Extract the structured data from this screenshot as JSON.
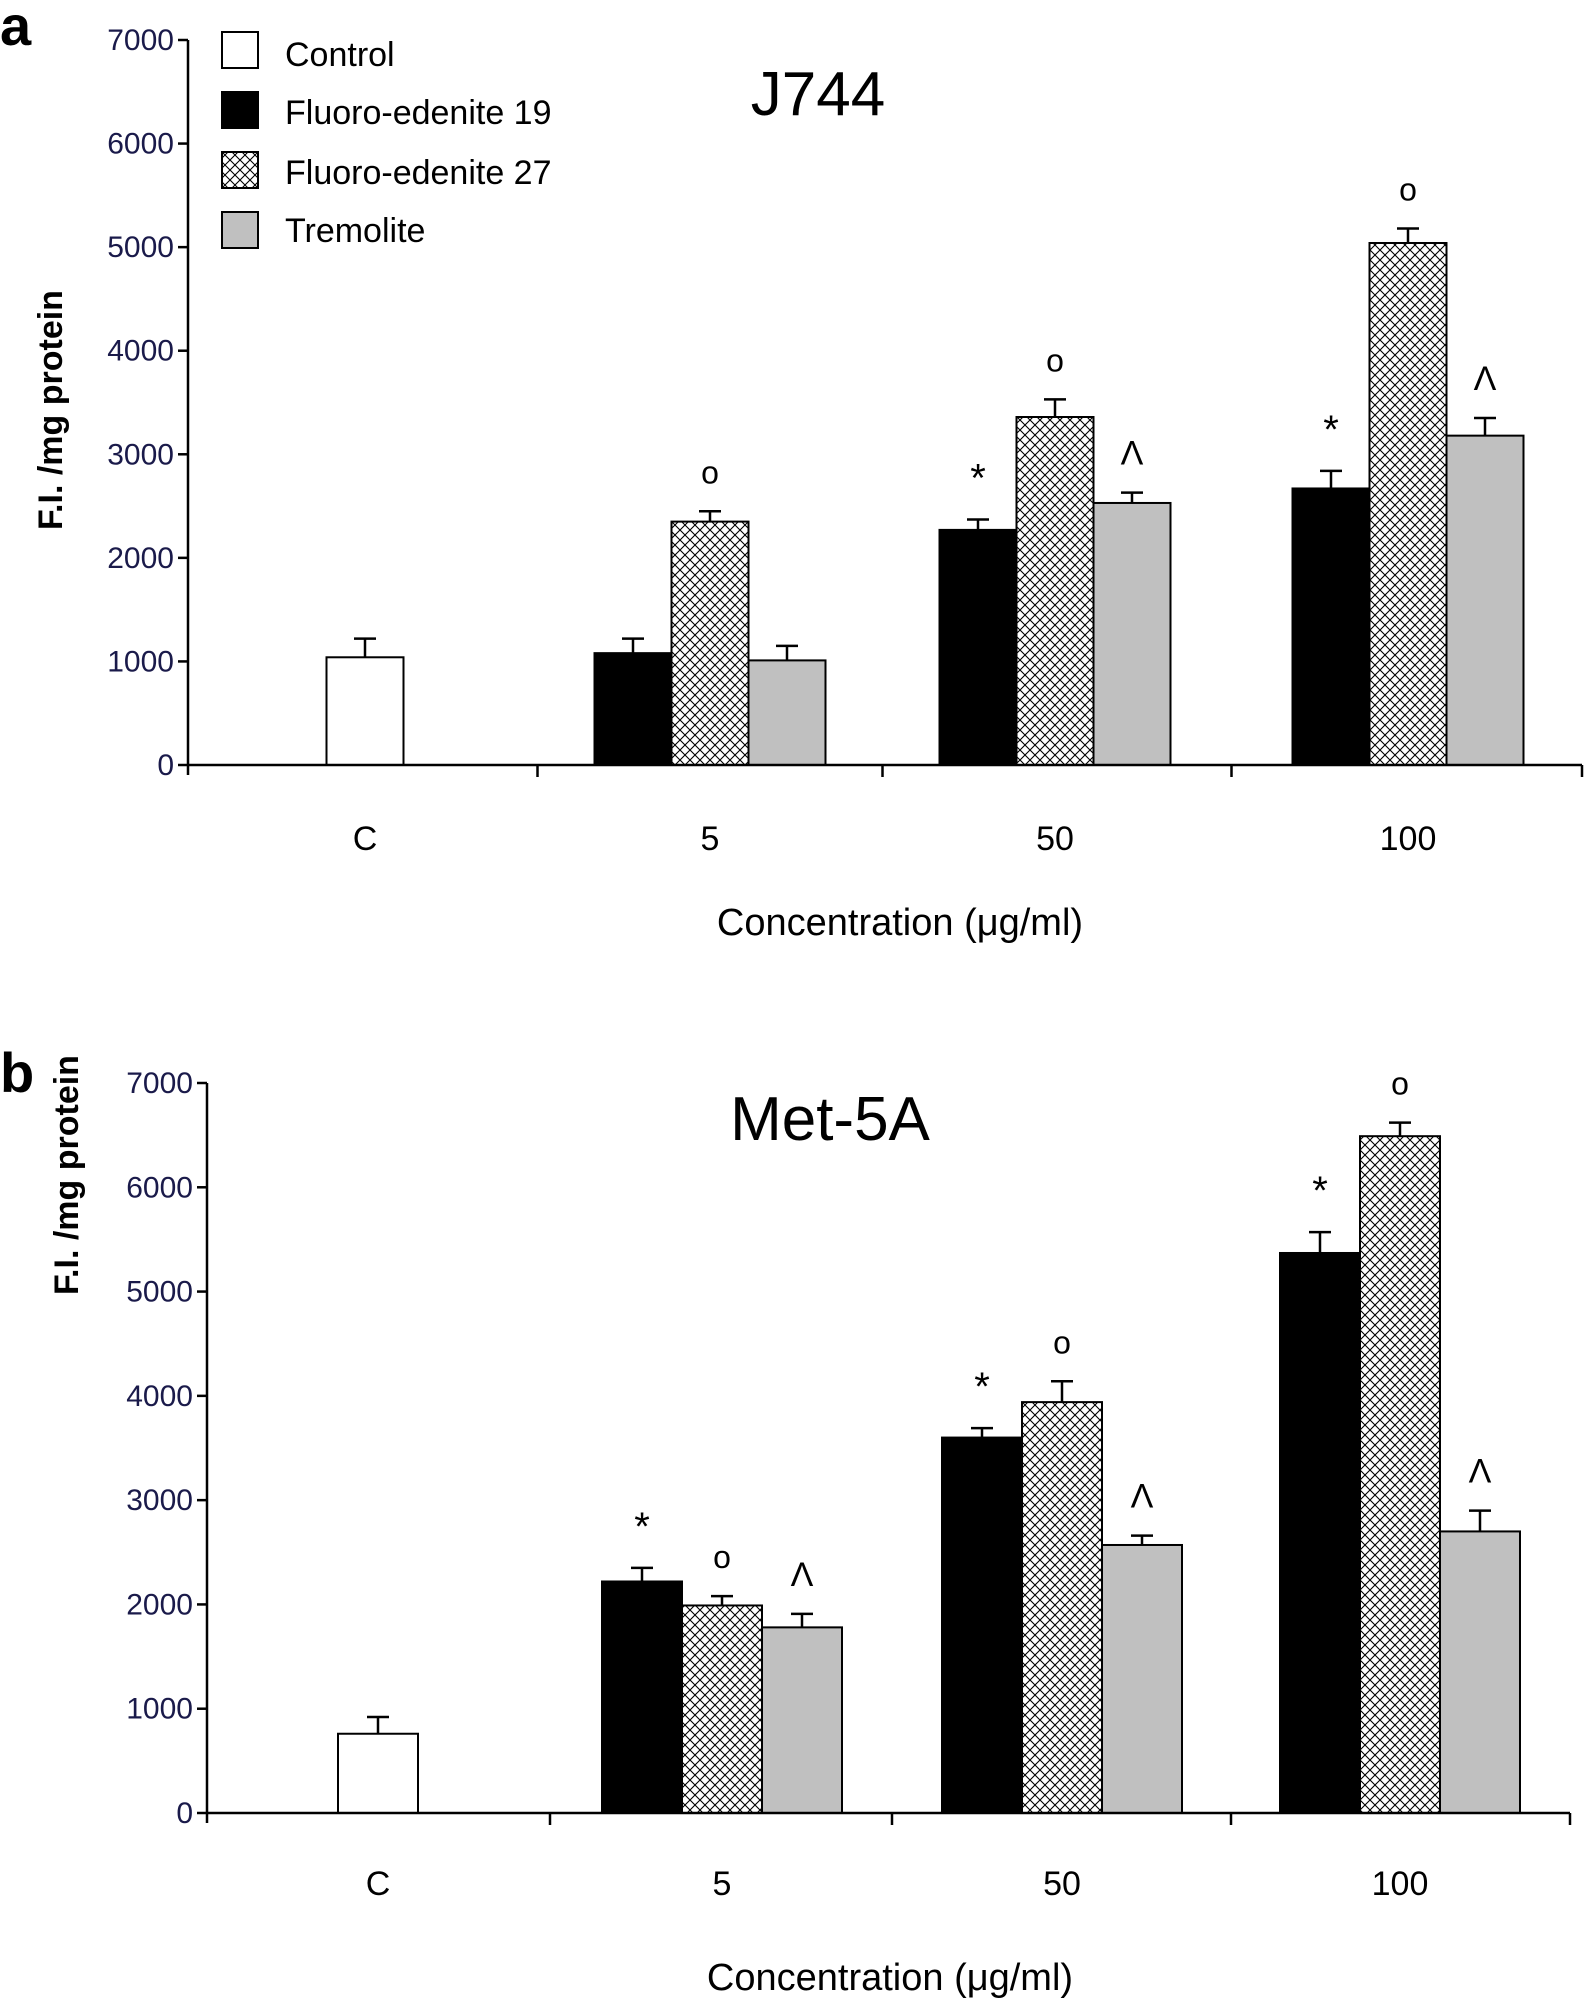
{
  "colors": {
    "control": "#ffffff",
    "fe19": "#000000",
    "fe27_bg": "#ffffff",
    "fe27_hatch": "#000000",
    "tremolite": "#c0c0c0",
    "axis": "#000000",
    "tick_label": "#1a1a4a"
  },
  "legend": [
    {
      "name": "Control",
      "pattern": "control"
    },
    {
      "name": "Fluoro-edenite 19",
      "pattern": "fe19"
    },
    {
      "name": "Fluoro-edenite 27",
      "pattern": "fe27"
    },
    {
      "name": "Tremolite",
      "pattern": "tremolite"
    }
  ],
  "chart_data": [
    {
      "panel_label": "a",
      "type": "bar",
      "title": "J744",
      "xlabel": "Concentration (μg/ml)",
      "ylabel": "F.I. /mg protein",
      "ylim": [
        0,
        7000
      ],
      "yticks": [
        "0",
        "1000",
        "2000",
        "3000",
        "4000",
        "5000",
        "6000",
        "7000"
      ],
      "categories": [
        "C",
        "5",
        "50",
        "100"
      ],
      "series": [
        {
          "name": "Control",
          "pattern": "control",
          "values": [
            1040,
            null,
            null,
            null
          ],
          "errors": [
            180,
            null,
            null,
            null
          ],
          "marks": [
            "",
            "",
            "",
            ""
          ]
        },
        {
          "name": "Fluoro-edenite 19",
          "pattern": "fe19",
          "values": [
            null,
            1080,
            2270,
            2670
          ],
          "errors": [
            null,
            140,
            100,
            170
          ],
          "marks": [
            "",
            "",
            "*",
            "*"
          ]
        },
        {
          "name": "Fluoro-edenite 27",
          "pattern": "fe27",
          "values": [
            null,
            2350,
            3360,
            5040
          ],
          "errors": [
            null,
            100,
            170,
            140
          ],
          "marks": [
            "",
            "o",
            "o",
            "o"
          ]
        },
        {
          "name": "Tremolite",
          "pattern": "tremolite",
          "values": [
            null,
            1010,
            2530,
            3180
          ],
          "errors": [
            null,
            140,
            100,
            170
          ],
          "marks": [
            "",
            "",
            "^",
            "^"
          ]
        }
      ]
    },
    {
      "panel_label": "b",
      "type": "bar",
      "title": "Met-5A",
      "xlabel": "Concentration (μg/ml)",
      "ylabel": "F.I. /mg protein",
      "ylim": [
        0,
        7000
      ],
      "yticks": [
        "0",
        "1000",
        "2000",
        "3000",
        "4000",
        "5000",
        "6000",
        "7000"
      ],
      "categories": [
        "C",
        "5",
        "50",
        "100"
      ],
      "series": [
        {
          "name": "Control",
          "pattern": "control",
          "values": [
            760,
            null,
            null,
            null
          ],
          "errors": [
            160,
            null,
            null,
            null
          ],
          "marks": [
            "",
            "",
            "",
            ""
          ]
        },
        {
          "name": "Fluoro-edenite 19",
          "pattern": "fe19",
          "values": [
            null,
            2220,
            3600,
            5370
          ],
          "errors": [
            null,
            130,
            90,
            200
          ],
          "marks": [
            "",
            "*",
            "*",
            "*"
          ]
        },
        {
          "name": "Fluoro-edenite 27",
          "pattern": "fe27",
          "values": [
            null,
            1990,
            3940,
            6490
          ],
          "errors": [
            null,
            90,
            200,
            130
          ],
          "marks": [
            "",
            "o",
            "o",
            "o"
          ]
        },
        {
          "name": "Tremolite",
          "pattern": "tremolite",
          "values": [
            null,
            1780,
            2570,
            2700
          ],
          "errors": [
            null,
            130,
            90,
            200
          ],
          "marks": [
            "",
            "^",
            "^",
            "^"
          ]
        }
      ]
    }
  ]
}
